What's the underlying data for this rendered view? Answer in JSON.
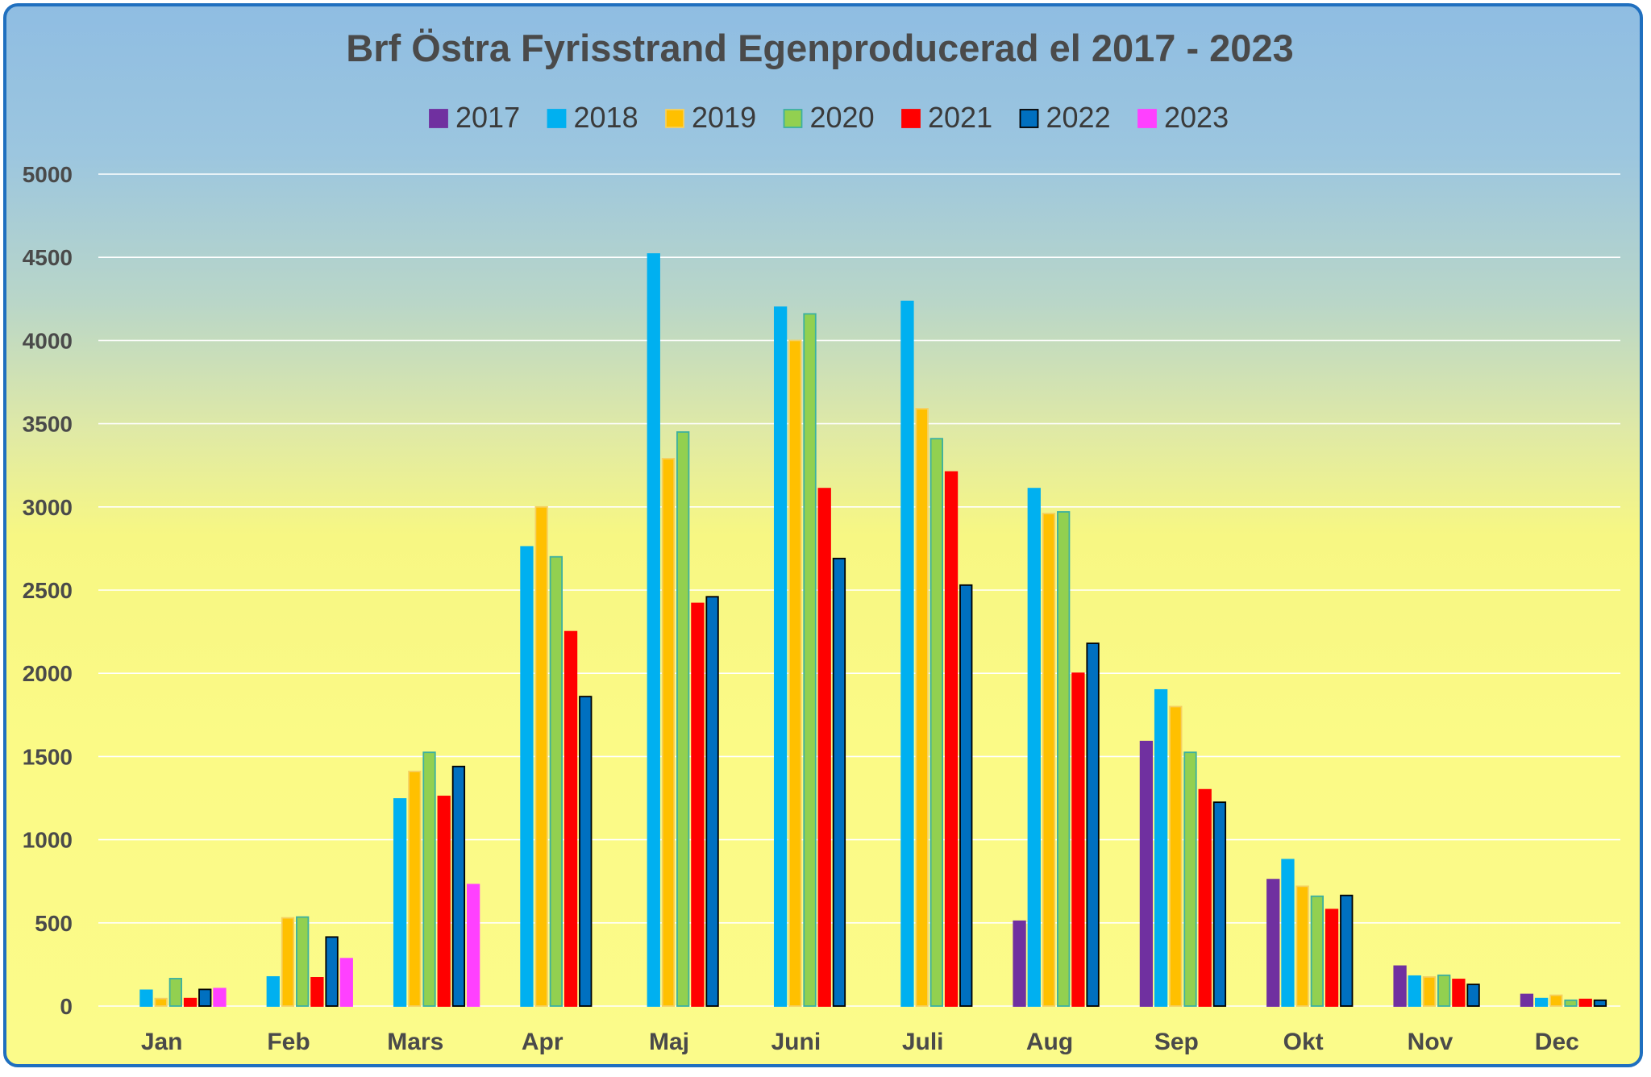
{
  "chart_data": {
    "type": "bar",
    "title": "Brf Östra Fyrisstrand Egenproducerad el 2017 - 2023",
    "xlabel": "",
    "ylabel": "",
    "ylim": [
      0,
      5000
    ],
    "yticks": [
      "0",
      "500",
      "1000",
      "1500",
      "2000",
      "2500",
      "3000",
      "3500",
      "4000",
      "4500",
      "5000"
    ],
    "grid": true,
    "legend_position": "top",
    "categories": [
      "Jan",
      "Feb",
      "Mars",
      "Apr",
      "Maj",
      "Juni",
      "Juli",
      "Aug",
      "Sep",
      "Okt",
      "Nov",
      "Dec"
    ],
    "series": [
      {
        "name": "2017",
        "color": "#7030a0",
        "outline": "#7030a0",
        "values": [
          0,
          0,
          0,
          0,
          0,
          0,
          0,
          510,
          1590,
          760,
          240,
          70
        ]
      },
      {
        "name": "2018",
        "color": "#00b0f0",
        "outline": "#00b0f0",
        "values": [
          95,
          175,
          1245,
          2760,
          4520,
          4200,
          4235,
          3110,
          1900,
          880,
          180,
          45
        ]
      },
      {
        "name": "2019",
        "color": "#ffc000",
        "outline": "#f5d060",
        "values": [
          45,
          530,
          1410,
          3000,
          3290,
          4000,
          3590,
          2960,
          1800,
          720,
          175,
          65
        ]
      },
      {
        "name": "2020",
        "color": "#92d050",
        "outline": "#3cb0a0",
        "values": [
          165,
          535,
          1525,
          2700,
          3450,
          4160,
          3410,
          2970,
          1525,
          660,
          185,
          35
        ]
      },
      {
        "name": "2021",
        "color": "#ff0000",
        "outline": "#ff0000",
        "values": [
          45,
          170,
          1260,
          2250,
          2420,
          3110,
          3210,
          2000,
          1300,
          580,
          160,
          40
        ]
      },
      {
        "name": "2022",
        "color": "#0070c0",
        "outline": "#000000",
        "values": [
          100,
          415,
          1440,
          1860,
          2460,
          2690,
          2530,
          2180,
          1225,
          665,
          130,
          35
        ]
      },
      {
        "name": "2023",
        "color": "#ff40ff",
        "outline": "#ff40ff",
        "values": [
          105,
          285,
          730,
          0,
          0,
          0,
          0,
          0,
          0,
          0,
          0,
          0
        ]
      }
    ]
  }
}
